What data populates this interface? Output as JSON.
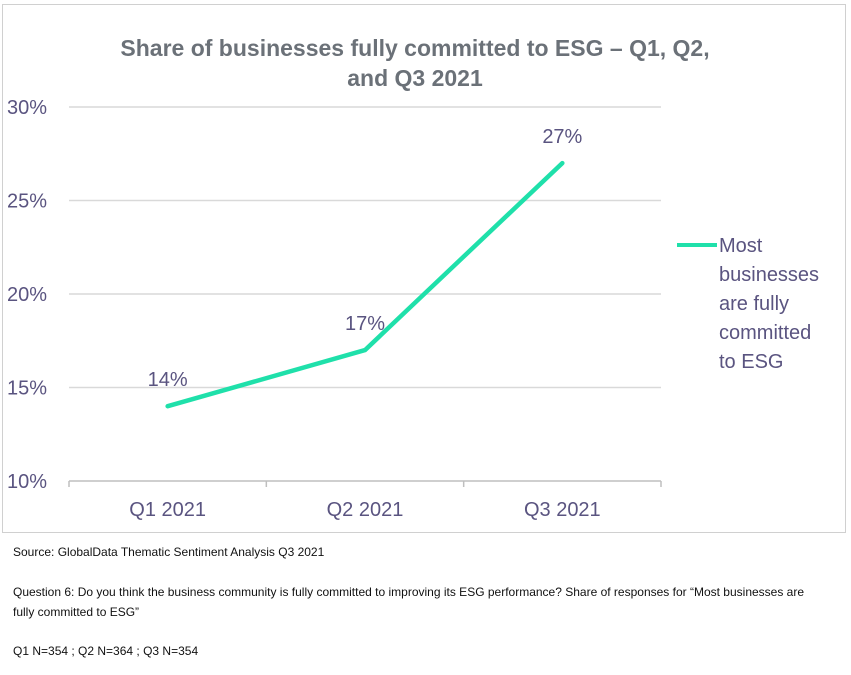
{
  "chart_data": {
    "type": "line",
    "title_lines": [
      "Share of businesses fully committed to ESG – Q1, Q2,",
      "and Q3 2021"
    ],
    "categories": [
      "Q1 2021",
      "Q2 2021",
      "Q3 2021"
    ],
    "series": [
      {
        "name_lines": [
          "Most",
          "businesses",
          "are fully",
          "committed",
          "to ESG"
        ],
        "values": [
          14,
          17,
          27
        ],
        "labels": [
          "14%",
          "17%",
          "27%"
        ],
        "color": "#1fe0aa"
      }
    ],
    "yticks": [
      "30%",
      "25%",
      "20%",
      "15%",
      "10%"
    ],
    "ytick_values": [
      30,
      25,
      20,
      15,
      10
    ],
    "ylim": [
      10,
      30
    ],
    "grid": true,
    "legend_position": "right"
  },
  "notes": {
    "source": "Source: GlobalData Thematic Sentiment Analysis Q3 2021",
    "question": "Question 6: Do you think the business community is fully committed to improving its ESG performance? Share of responses for “Most businesses are fully committed to ESG”",
    "sample": "Q1 N=354 ; Q2 N=364 ; Q3 N=354"
  },
  "colors": {
    "line": "#1fe0aa",
    "grid": "#d9d9d9",
    "text": "#5a5480",
    "title": "#6b7178"
  }
}
